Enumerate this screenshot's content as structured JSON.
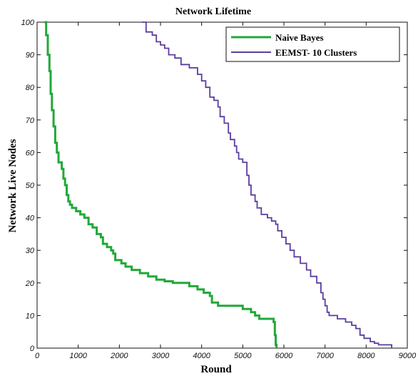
{
  "chart_data": {
    "type": "line",
    "title": "Network Lifetime",
    "xlabel": "Round",
    "ylabel": "Network Live Nodes",
    "xlim": [
      0,
      9000
    ],
    "ylim": [
      0,
      100
    ],
    "xticks": [
      0,
      1000,
      2000,
      3000,
      4000,
      5000,
      6000,
      7000,
      8000,
      9000
    ],
    "yticks": [
      0,
      10,
      20,
      30,
      40,
      50,
      60,
      70,
      80,
      90,
      100
    ],
    "grid": false,
    "legend_position": "top-right",
    "series": [
      {
        "name": "Naive Bayes",
        "color": "#22a83a",
        "points": [
          [
            180,
            100
          ],
          [
            220,
            96
          ],
          [
            260,
            90
          ],
          [
            300,
            85
          ],
          [
            330,
            78
          ],
          [
            360,
            73
          ],
          [
            400,
            68
          ],
          [
            440,
            63
          ],
          [
            480,
            60
          ],
          [
            520,
            57
          ],
          [
            600,
            55
          ],
          [
            640,
            52
          ],
          [
            680,
            50
          ],
          [
            720,
            47
          ],
          [
            760,
            45
          ],
          [
            800,
            44
          ],
          [
            850,
            43
          ],
          [
            950,
            42
          ],
          [
            1050,
            41
          ],
          [
            1150,
            40
          ],
          [
            1250,
            38
          ],
          [
            1350,
            37
          ],
          [
            1450,
            35
          ],
          [
            1550,
            34
          ],
          [
            1600,
            32
          ],
          [
            1700,
            31
          ],
          [
            1800,
            30
          ],
          [
            1850,
            29
          ],
          [
            1900,
            27
          ],
          [
            2050,
            26
          ],
          [
            2150,
            25
          ],
          [
            2300,
            24
          ],
          [
            2500,
            23
          ],
          [
            2700,
            22
          ],
          [
            2900,
            21
          ],
          [
            3100,
            20.5
          ],
          [
            3300,
            20
          ],
          [
            3600,
            20
          ],
          [
            3700,
            19
          ],
          [
            3900,
            18
          ],
          [
            4050,
            17
          ],
          [
            4200,
            16
          ],
          [
            4250,
            14
          ],
          [
            4400,
            13
          ],
          [
            4800,
            13
          ],
          [
            5000,
            12
          ],
          [
            5200,
            11
          ],
          [
            5300,
            10
          ],
          [
            5400,
            9
          ],
          [
            5700,
            9
          ],
          [
            5750,
            8
          ],
          [
            5780,
            4
          ],
          [
            5800,
            1
          ],
          [
            5820,
            0
          ]
        ]
      },
      {
        "name": "EEMST- 10 Clusters",
        "color": "#5b3d9e",
        "points": [
          [
            2550,
            100
          ],
          [
            2650,
            97
          ],
          [
            2800,
            96
          ],
          [
            2900,
            94
          ],
          [
            3000,
            93
          ],
          [
            3100,
            92
          ],
          [
            3200,
            90
          ],
          [
            3350,
            89
          ],
          [
            3500,
            87
          ],
          [
            3700,
            86
          ],
          [
            3900,
            84
          ],
          [
            4000,
            82
          ],
          [
            4100,
            80
          ],
          [
            4200,
            77
          ],
          [
            4300,
            76
          ],
          [
            4400,
            74
          ],
          [
            4450,
            71
          ],
          [
            4550,
            69
          ],
          [
            4650,
            66
          ],
          [
            4700,
            64
          ],
          [
            4800,
            62
          ],
          [
            4850,
            60
          ],
          [
            4900,
            58
          ],
          [
            5000,
            57
          ],
          [
            5100,
            53
          ],
          [
            5150,
            50
          ],
          [
            5200,
            47
          ],
          [
            5300,
            45
          ],
          [
            5350,
            43
          ],
          [
            5450,
            41
          ],
          [
            5600,
            40
          ],
          [
            5700,
            39
          ],
          [
            5800,
            38
          ],
          [
            5850,
            36
          ],
          [
            5950,
            34
          ],
          [
            6050,
            32
          ],
          [
            6150,
            30
          ],
          [
            6250,
            28
          ],
          [
            6400,
            26
          ],
          [
            6550,
            24
          ],
          [
            6650,
            22
          ],
          [
            6800,
            20
          ],
          [
            6900,
            17
          ],
          [
            6950,
            15
          ],
          [
            7000,
            13
          ],
          [
            7050,
            11
          ],
          [
            7100,
            10
          ],
          [
            7300,
            9
          ],
          [
            7500,
            8
          ],
          [
            7650,
            7
          ],
          [
            7750,
            6
          ],
          [
            7850,
            4
          ],
          [
            7950,
            3
          ],
          [
            8100,
            2
          ],
          [
            8200,
            1.5
          ],
          [
            8300,
            1
          ],
          [
            8600,
            1
          ],
          [
            8620,
            0
          ]
        ]
      }
    ]
  }
}
